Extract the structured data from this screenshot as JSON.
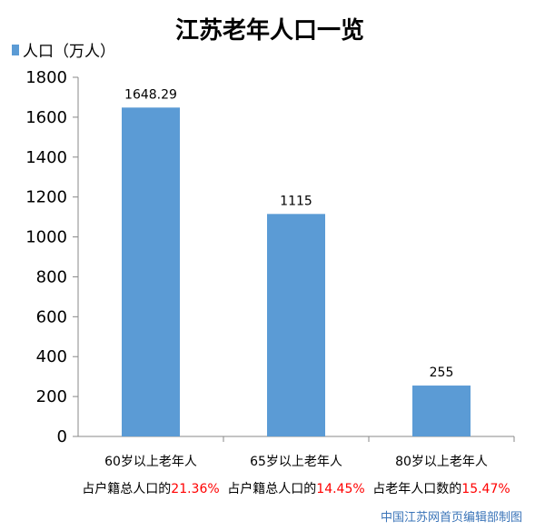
{
  "chart_data": {
    "type": "bar",
    "title": "江苏老年人口一览",
    "legend": {
      "label": "人口（万人）",
      "placement": "top-left"
    },
    "categories": [
      "60岁以上老年人",
      "65岁以上老年人",
      "80岁以上老年人"
    ],
    "values": [
      1648.29,
      1115,
      255
    ],
    "data_labels": [
      "1648.29",
      "1115",
      "255"
    ],
    "notes": [
      {
        "text": "占户籍总人口的",
        "pct": "21.36%"
      },
      {
        "text": "占户籍总人口的",
        "pct": "14.45%"
      },
      {
        "text": "占老年人口数的",
        "pct": "15.47%"
      }
    ],
    "ylim": [
      0,
      1800
    ],
    "yticks": [
      0,
      200,
      400,
      600,
      800,
      1000,
      1200,
      1400,
      1600,
      1800
    ],
    "grid": false,
    "bar_color": "#5b9bd5",
    "highlight_color": "#ff0000"
  },
  "credit": "中国江苏网首页编辑部制图"
}
